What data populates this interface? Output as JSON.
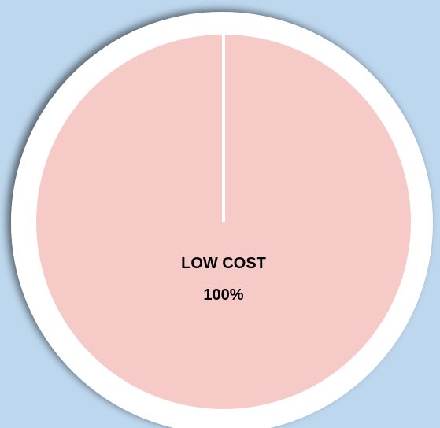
{
  "chart_data": {
    "type": "pie",
    "categories": [
      "LOW COST"
    ],
    "values": [
      100
    ],
    "value_labels": [
      "100%"
    ],
    "colors": [
      "#f6cbc7"
    ]
  }
}
